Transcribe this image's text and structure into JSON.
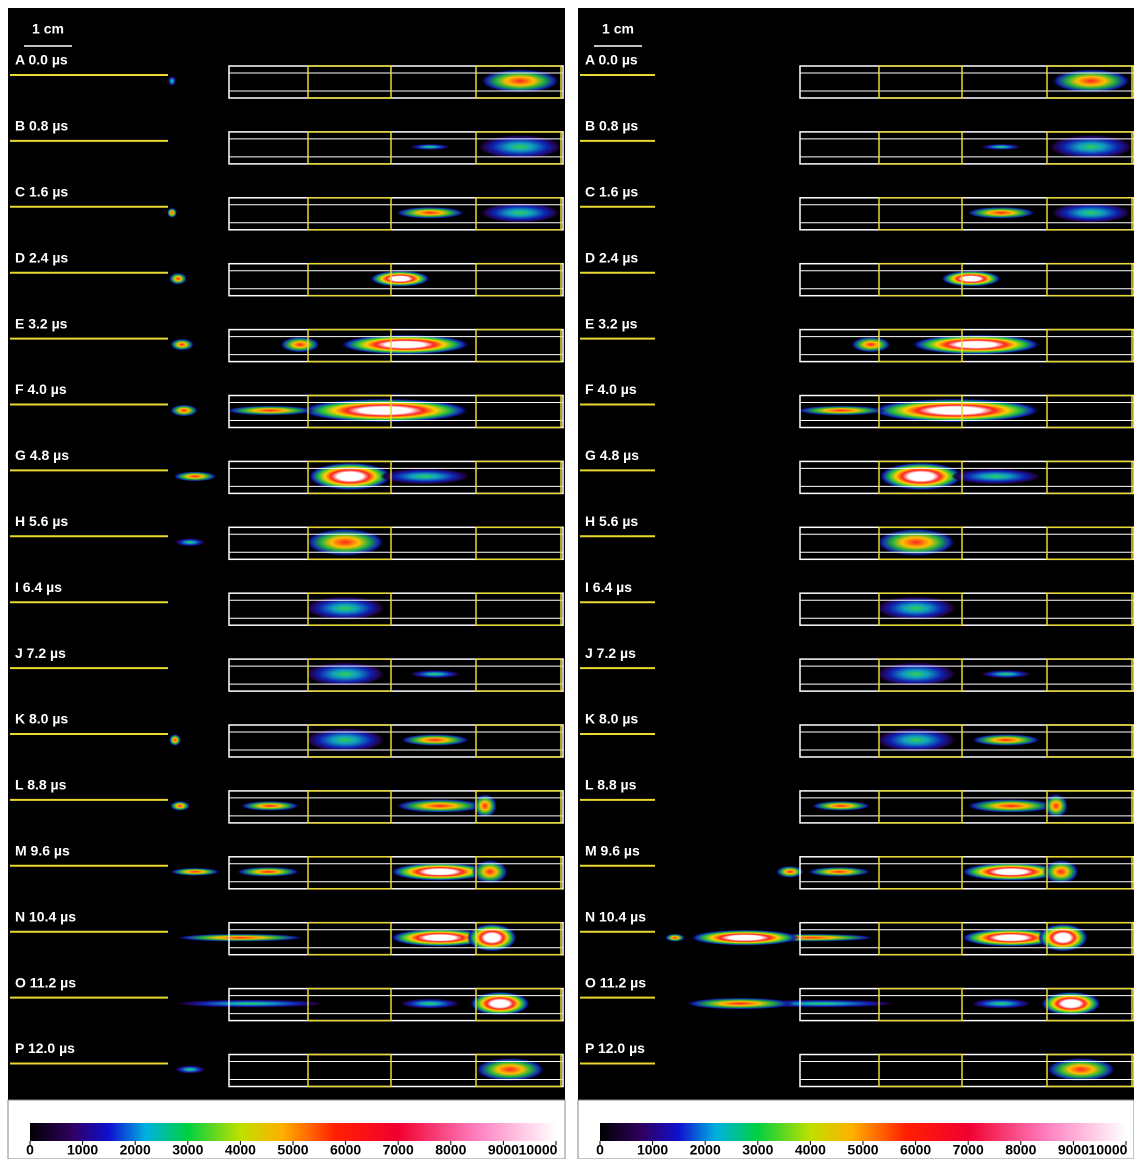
{
  "panels": [
    {
      "scale_label": "1 cm",
      "rows": [
        "A 0.0 µs",
        "B 0.8 µs",
        "C 1.6 µs",
        "D 2.4 µs",
        "E 3.2 µs",
        "F 4.0 µs",
        "G 4.8 µs",
        "H 5.6 µs",
        "I 6.4 µs",
        "J 7.2 µs",
        "K 8.0 µs",
        "L 8.8 µs",
        "M 9.6 µs",
        "N 10.4 µs",
        "O 11.2 µs",
        "P 12.0 µs"
      ],
      "colorbar_ticks": [
        0,
        1000,
        2000,
        3000,
        4000,
        5000,
        6000,
        7000,
        8000,
        9000,
        10000
      ]
    },
    {
      "scale_label": "1 cm",
      "rows": [
        "A 0.0 µs",
        "B 0.8 µs",
        "C 1.6 µs",
        "D 2.4 µs",
        "E 3.2 µs",
        "F 4.0 µs",
        "G 4.8 µs",
        "H 5.6 µs",
        "I 6.4 µs",
        "J 7.2 µs",
        "K 8.0 µs",
        "L 8.8 µs",
        "M 9.6 µs",
        "N 10.4 µs",
        "O 11.2 µs",
        "P 12.0 µs"
      ],
      "colorbar_ticks": [
        0,
        1000,
        2000,
        3000,
        4000,
        5000,
        6000,
        7000,
        8000,
        9000,
        10000
      ]
    }
  ]
}
